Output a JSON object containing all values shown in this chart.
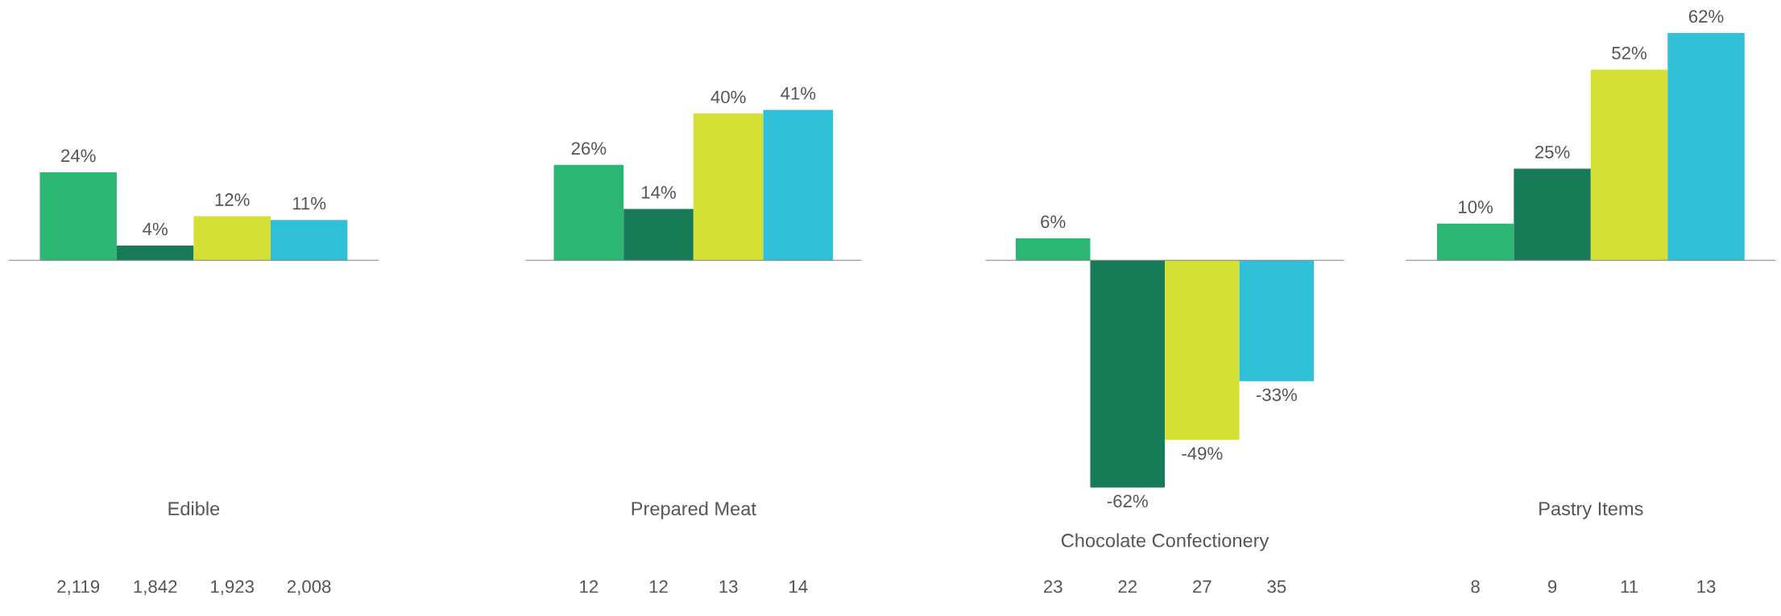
{
  "chart_data": [
    {
      "type": "bar",
      "xlabel": "Edible",
      "categories": [
        "2,119",
        "1,842",
        "1,923",
        "2,008"
      ],
      "values": [
        24,
        4,
        12,
        11
      ],
      "value_labels": [
        "24%",
        "4%",
        "12%",
        "11%"
      ],
      "colors": [
        "#2bb673",
        "#177b57",
        "#d4e033",
        "#30c0d8"
      ],
      "grid": false,
      "legend": false
    },
    {
      "type": "bar",
      "xlabel": "Prepared Meat",
      "categories": [
        "12",
        "12",
        "13",
        "14"
      ],
      "values": [
        26,
        14,
        40,
        41
      ],
      "value_labels": [
        "26%",
        "14%",
        "40%",
        "41%"
      ],
      "colors": [
        "#2bb673",
        "#177b57",
        "#d4e033",
        "#30c0d8"
      ],
      "grid": false,
      "legend": false
    },
    {
      "type": "bar",
      "xlabel": "Chocolate Confectionery",
      "categories": [
        "23",
        "22",
        "27",
        "35"
      ],
      "values": [
        6,
        -62,
        -49,
        -33
      ],
      "value_labels": [
        "6%",
        "-62%",
        "-49%",
        "-33%"
      ],
      "colors": [
        "#2bb673",
        "#177b57",
        "#d4e033",
        "#30c0d8"
      ],
      "grid": false,
      "legend": false
    },
    {
      "type": "bar",
      "xlabel": "Pastry Items",
      "categories": [
        "8",
        "9",
        "11",
        "13"
      ],
      "values": [
        10,
        25,
        52,
        62
      ],
      "value_labels": [
        "10%",
        "25%",
        "52%",
        "62%"
      ],
      "colors": [
        "#2bb673",
        "#177b57",
        "#d4e033",
        "#30c0d8"
      ],
      "grid": false,
      "legend": false
    }
  ]
}
